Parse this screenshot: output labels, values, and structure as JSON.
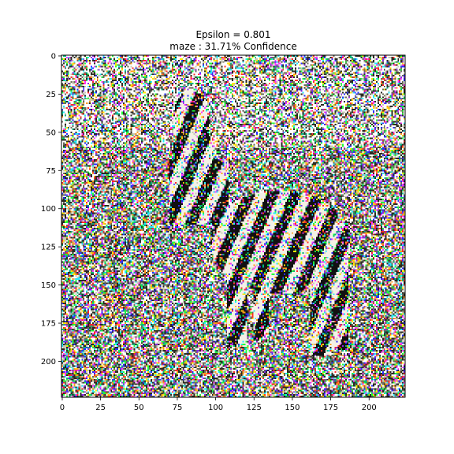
{
  "chart_data": {
    "type": "heatmap",
    "subtype": "image",
    "title_lines": [
      "Epsilon = 0.801",
      "maze : 31.71% Confidence"
    ],
    "xlabel": "",
    "ylabel": "",
    "xlim": [
      -0.5,
      223.5
    ],
    "ylim": [
      223.5,
      -0.5
    ],
    "x_ticks": [
      0,
      25,
      50,
      75,
      100,
      125,
      150,
      175,
      200
    ],
    "y_ticks": [
      0,
      25,
      50,
      75,
      100,
      125,
      150,
      175,
      200
    ],
    "image_size": [
      224,
      224
    ],
    "image_description": "adversarially perturbed photo of a zebra standing in grass, covered in dense multicolored pixel noise",
    "grid": false,
    "palette": [
      "#ffffff",
      "#f4f1e6",
      "#2a2a22",
      "#111111",
      "#6b6b5a",
      "#ff2a2a",
      "#ffe600",
      "#1fff3a",
      "#22e8ff",
      "#2a2cff",
      "#ff37ff",
      "#ff9a1a",
      "#8a2be2",
      "#00b37a",
      "#c8c8b4"
    ]
  }
}
